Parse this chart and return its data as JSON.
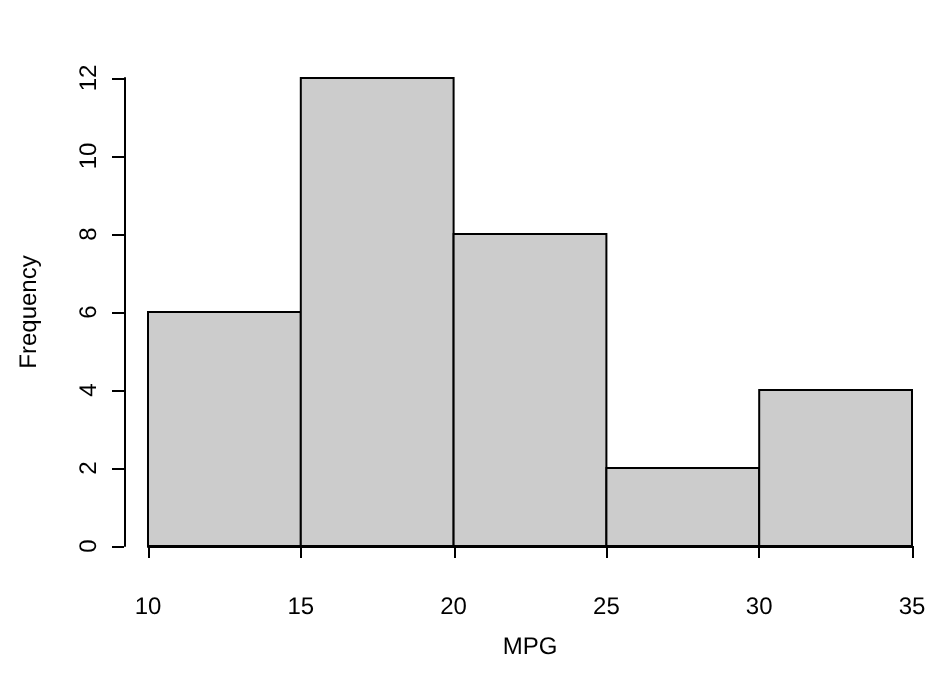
{
  "chart_data": {
    "type": "histogram",
    "xlabel": "MPG",
    "ylabel": "Frequency",
    "bins": [
      10,
      15,
      20,
      25,
      30,
      35
    ],
    "values": [
      6,
      12,
      8,
      2,
      4
    ],
    "color": "#cccccc",
    "xlim": [
      10,
      35
    ],
    "xticks": [
      10,
      15,
      20,
      25,
      30,
      35
    ],
    "ylim": [
      0,
      12
    ],
    "yticks": [
      0,
      2,
      4,
      6,
      8,
      10,
      12
    ],
    "grid": false
  }
}
